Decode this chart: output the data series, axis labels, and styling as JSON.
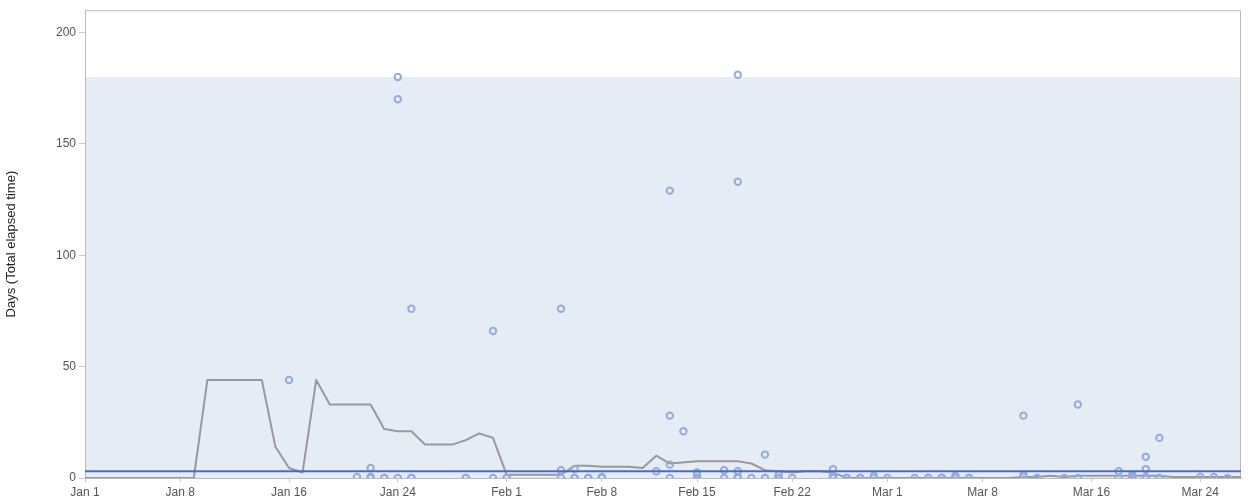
{
  "chart_data": {
    "type": "scatter",
    "ylabel": "Days (Total elapsed time)",
    "xlim": [
      "--01-01",
      "--03-27"
    ],
    "xticks": [
      {
        "value": "--01-01",
        "label": "Jan 1"
      },
      {
        "value": "--01-08",
        "label": "Jan 8"
      },
      {
        "value": "--01-16",
        "label": "Jan 16"
      },
      {
        "value": "--01-24",
        "label": "Jan 24"
      },
      {
        "value": "--02-01",
        "label": "Feb 1"
      },
      {
        "value": "--02-08",
        "label": "Feb 8"
      },
      {
        "value": "--02-15",
        "label": "Feb 15"
      },
      {
        "value": "--02-22",
        "label": "Feb 22"
      },
      {
        "value": "--03-01",
        "label": "Mar 1"
      },
      {
        "value": "--03-08",
        "label": "Mar 8"
      },
      {
        "value": "--03-16",
        "label": "Mar 16"
      },
      {
        "value": "--03-24",
        "label": "Mar 24"
      }
    ],
    "ylim": [
      0,
      210
    ],
    "yticks": [
      0,
      50,
      100,
      150,
      200
    ],
    "bands": [
      {
        "axis": "y",
        "from": 0,
        "to": 180,
        "color": "#e6ecf6"
      }
    ],
    "ref_lines": [
      {
        "axis": "y",
        "value": 3,
        "color": "#4a6cc0"
      }
    ],
    "series": [
      {
        "type": "scatter",
        "color": "#94acd8",
        "marker": "circle",
        "x": [
          "--01-24",
          "--01-24",
          "--01-25",
          "--01-31",
          "--02-05",
          "--02-13",
          "--02-18",
          "--02-18",
          "--01-16",
          "--01-22",
          "--01-21",
          "--01-22",
          "--01-22",
          "--01-23",
          "--01-23",
          "--01-24",
          "--01-25",
          "--01-25",
          "--02-13",
          "--02-14",
          "--02-20",
          "--02-13",
          "--02-05",
          "--02-06",
          "--02-12",
          "--02-17",
          "--02-18",
          "--02-15",
          "--02-15",
          "--02-21",
          "--02-25",
          "--02-25",
          "--02-25",
          "--02-25",
          "--02-08",
          "--02-18",
          "--02-15",
          "--02-15",
          "--02-15",
          "--02-07",
          "--02-06",
          "--02-22",
          "--02-21",
          "--02-20",
          "--02-18",
          "--02-19",
          "--01-29",
          "--01-29",
          "--01-31",
          "--02-01",
          "--02-01",
          "--02-05",
          "--02-06",
          "--02-07",
          "--02-07",
          "--02-08",
          "--02-13",
          "--02-17",
          "--02-18",
          "--02-18",
          "--02-20",
          "--02-21",
          "--02-21",
          "--02-25",
          "--02-26",
          "--03-15",
          "--03-11",
          "--03-21",
          "--03-20",
          "--03-20",
          "--03-18",
          "--03-11",
          "--03-19",
          "--03-06",
          "--02-28",
          "--03-19",
          "--03-20",
          "--03-19",
          "--03-25",
          "--03-24",
          "--03-06",
          "--03-11",
          "--02-27",
          "--02-26",
          "--03-05",
          "--03-12",
          "--02-25",
          "--02-26",
          "--02-27",
          "--02-27",
          "--02-28",
          "--03-01",
          "--03-03",
          "--03-04",
          "--03-04",
          "--03-05",
          "--03-05",
          "--03-05",
          "--03-06",
          "--03-07",
          "--03-07",
          "--03-12",
          "--03-14",
          "--03-15",
          "--03-18",
          "--03-19",
          "--03-20",
          "--03-20",
          "--03-21",
          "--03-21",
          "--03-26"
        ],
        "values": [
          180,
          170,
          76,
          66,
          76,
          129,
          133,
          181,
          44,
          4.5,
          0.5,
          0.5,
          0,
          0,
          0,
          0,
          0,
          0,
          28,
          21,
          10.5,
          6,
          3.5,
          4,
          3,
          3.5,
          3,
          2.5,
          1.5,
          1.5,
          4,
          1,
          1,
          0.5,
          0.5,
          0.5,
          0,
          0,
          0,
          0,
          0,
          0,
          0,
          0,
          0,
          0,
          0,
          0,
          0,
          0,
          0,
          0,
          0,
          0,
          0,
          0,
          0,
          0,
          0,
          0,
          0,
          0,
          0,
          0,
          0,
          33,
          28,
          18,
          9.5,
          4,
          3,
          1.5,
          1.5,
          1,
          1,
          1,
          0.5,
          0.5,
          0.5,
          0.5,
          0,
          0.5,
          0,
          0,
          0,
          0,
          0,
          0,
          0,
          0,
          0,
          0,
          0,
          0,
          0,
          0,
          0,
          0,
          0,
          0,
          0,
          0,
          0,
          0,
          0,
          0,
          0,
          0,
          0,
          0,
          0
        ]
      },
      {
        "type": "line",
        "color": "#999999",
        "marker": "none",
        "x": [
          "--01-01",
          "--01-09",
          "--01-10",
          "--01-14",
          "--01-15",
          "--01-16",
          "--01-17",
          "--01-18",
          "--01-19",
          "--01-22",
          "--01-23",
          "--01-24",
          "--01-25",
          "--01-26",
          "--01-28",
          "--01-29",
          "--01-30",
          "--01-31",
          "--02-01",
          "--02-02",
          "--02-05",
          "--02-06",
          "--02-07",
          "--02-08",
          "--02-09",
          "--02-10",
          "--02-11",
          "--02-12",
          "--02-13",
          "--02-15",
          "--02-18",
          "--02-19",
          "--02-20",
          "--02-22",
          "--02-23",
          "--02-24",
          "--02-25",
          "--02-26",
          "--02-27",
          "--03-01",
          "--03-04",
          "--03-05",
          "--03-07",
          "--03-08",
          "--03-10",
          "--03-11",
          "--03-12",
          "--03-13",
          "--03-14",
          "--03-15",
          "--03-18",
          "--03-19",
          "--03-21",
          "--03-22",
          "--03-24",
          "--03-26",
          "--03-27"
        ],
        "values": [
          0,
          0,
          44,
          44,
          14,
          4.5,
          2.5,
          44,
          33,
          33,
          22,
          21,
          21,
          15,
          15,
          17,
          20,
          18,
          1.5,
          1.5,
          1.5,
          5.5,
          5.5,
          5,
          5,
          5,
          4.5,
          10,
          6.5,
          7.5,
          7.5,
          6.5,
          3.5,
          2.5,
          3,
          3,
          2.5,
          0,
          0,
          0,
          0,
          0,
          0,
          0,
          0,
          0.5,
          0.5,
          1,
          0.5,
          1,
          1,
          1,
          1,
          0.5,
          0.5,
          0.5,
          0.5
        ]
      }
    ]
  }
}
